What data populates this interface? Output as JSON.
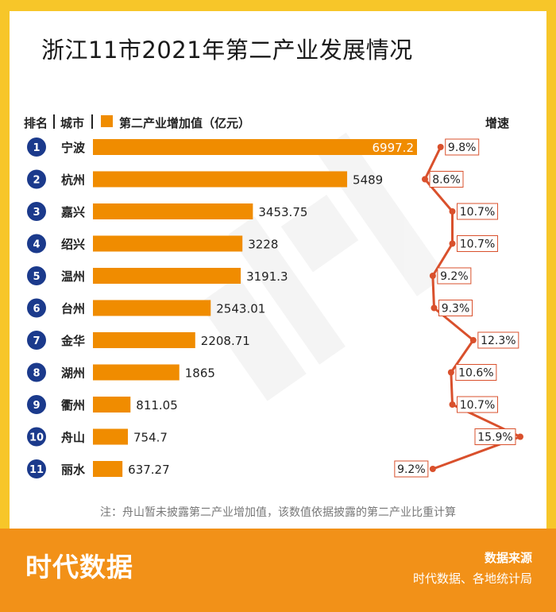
{
  "title": "浙江11市2021年第二产业发展情况",
  "header": {
    "rank_label": "排名",
    "city_label": "城市",
    "series_label": "第二产业增加值（亿元）",
    "growth_label": "增速"
  },
  "note": "注：舟山暂未披露第二产业增加值，该数值依据披露的第二产业比重计算",
  "footer": {
    "logo": "时代数据",
    "source_title": "数据来源",
    "source_text": "时代数据、各地统计局"
  },
  "colors": {
    "bar": "#f08c00",
    "rank_circle": "#1b3a8c",
    "growth_line": "#d9502c",
    "frame": "#f7c629",
    "footer_bg": "#f29118"
  },
  "chart_data": {
    "type": "bar",
    "orientation": "horizontal",
    "title": "浙江11市2021年第二产业发展情况",
    "categories": [
      "宁波",
      "杭州",
      "嘉兴",
      "绍兴",
      "温州",
      "台州",
      "金华",
      "湖州",
      "衢州",
      "舟山",
      "丽水"
    ],
    "ranks": [
      "1",
      "2",
      "3",
      "4",
      "5",
      "6",
      "7",
      "8",
      "9",
      "10",
      "11"
    ],
    "series": [
      {
        "name": "第二产业增加值（亿元）",
        "values": [
          6997.2,
          5489,
          3453.75,
          3228,
          3191.3,
          2543.01,
          2208.71,
          1865,
          811.05,
          754.7,
          637.27
        ],
        "labels": [
          "6997.2",
          "5489",
          "3453.75",
          "3228",
          "3191.3",
          "2543.01",
          "2208.71",
          "1865",
          "811.05",
          "754.7",
          "637.27"
        ]
      },
      {
        "name": "增速",
        "type": "line",
        "values": [
          9.8,
          8.6,
          10.7,
          10.7,
          9.2,
          9.3,
          12.3,
          10.6,
          10.7,
          15.9,
          9.2
        ],
        "labels": [
          "9.8%",
          "8.6%",
          "10.7%",
          "10.7%",
          "9.2%",
          "9.3%",
          "12.3%",
          "10.6%",
          "10.7%",
          "15.9%",
          "9.2%"
        ]
      }
    ],
    "xlim": [
      0,
      6997.2
    ]
  }
}
